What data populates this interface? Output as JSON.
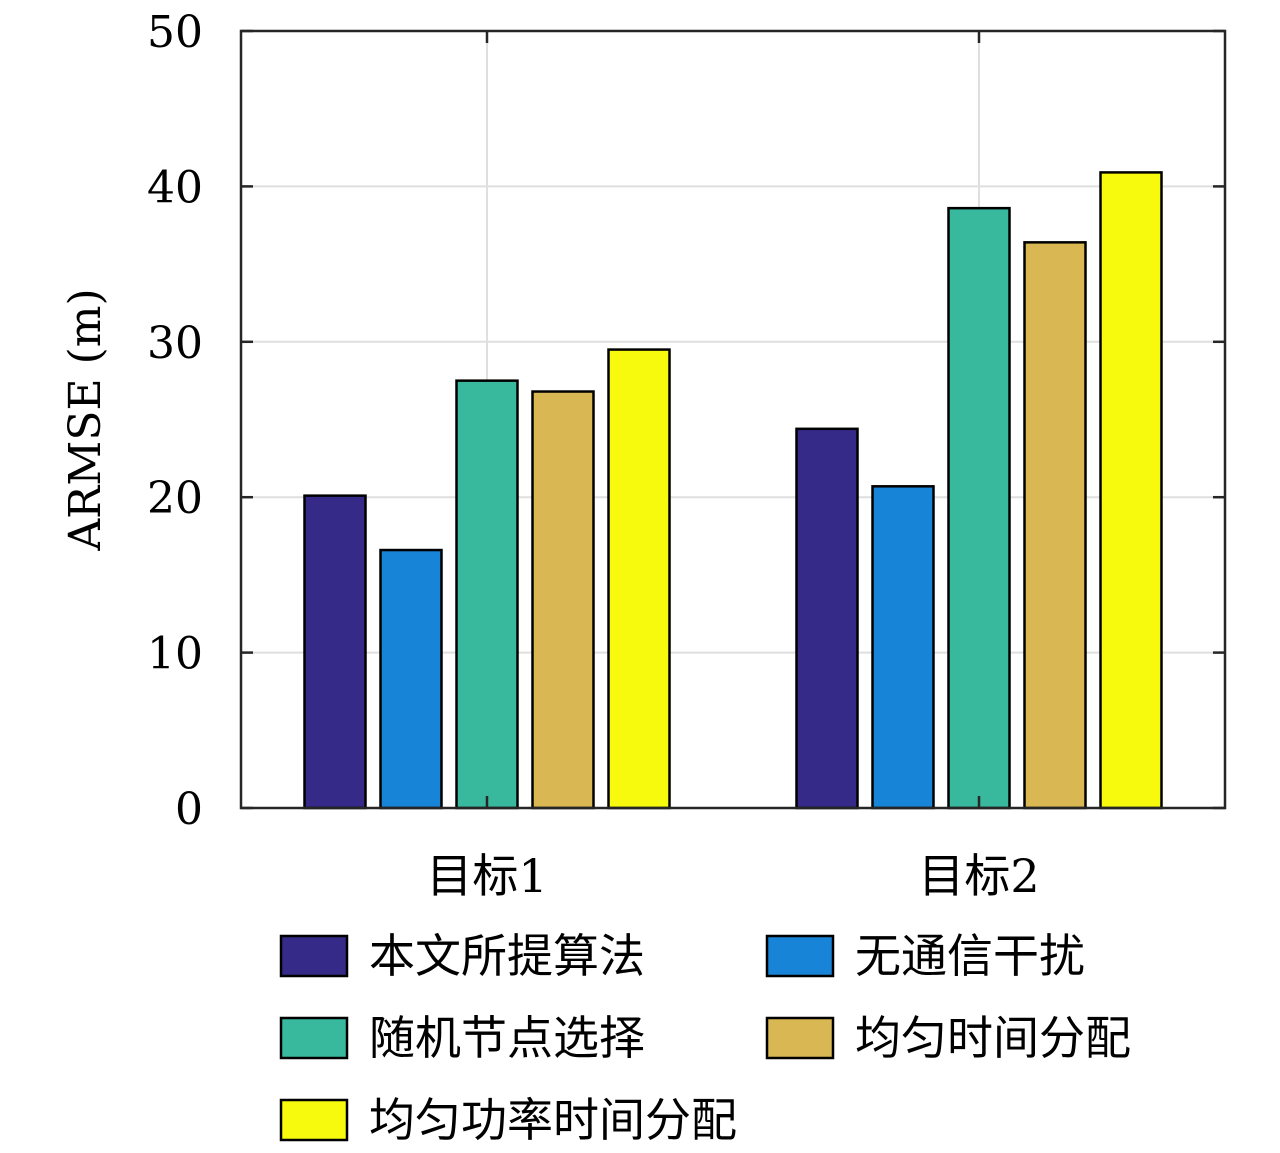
{
  "chart_data": {
    "type": "bar",
    "categories": [
      "目标1",
      "目标2"
    ],
    "series": [
      {
        "name": "本文所提算法",
        "values": [
          20.1,
          24.4
        ],
        "color": "#352a87"
      },
      {
        "name": "无通信干扰",
        "values": [
          16.6,
          20.7
        ],
        "color": "#1784d8"
      },
      {
        "name": "随机节点选择",
        "values": [
          27.5,
          38.6
        ],
        "color": "#38b99e"
      },
      {
        "name": "均匀时间分配",
        "values": [
          26.8,
          36.4
        ],
        "color": "#d9b853"
      },
      {
        "name": "均匀功率时间分配",
        "values": [
          29.5,
          40.9
        ],
        "color": "#f8fa0d"
      }
    ],
    "title": "",
    "xlabel": "",
    "ylabel": "ARMSE (m)",
    "ylim": [
      0,
      50
    ],
    "yticks": [
      0,
      10,
      20,
      30,
      40,
      50
    ],
    "grid": true,
    "legend_position": "bottom"
  }
}
